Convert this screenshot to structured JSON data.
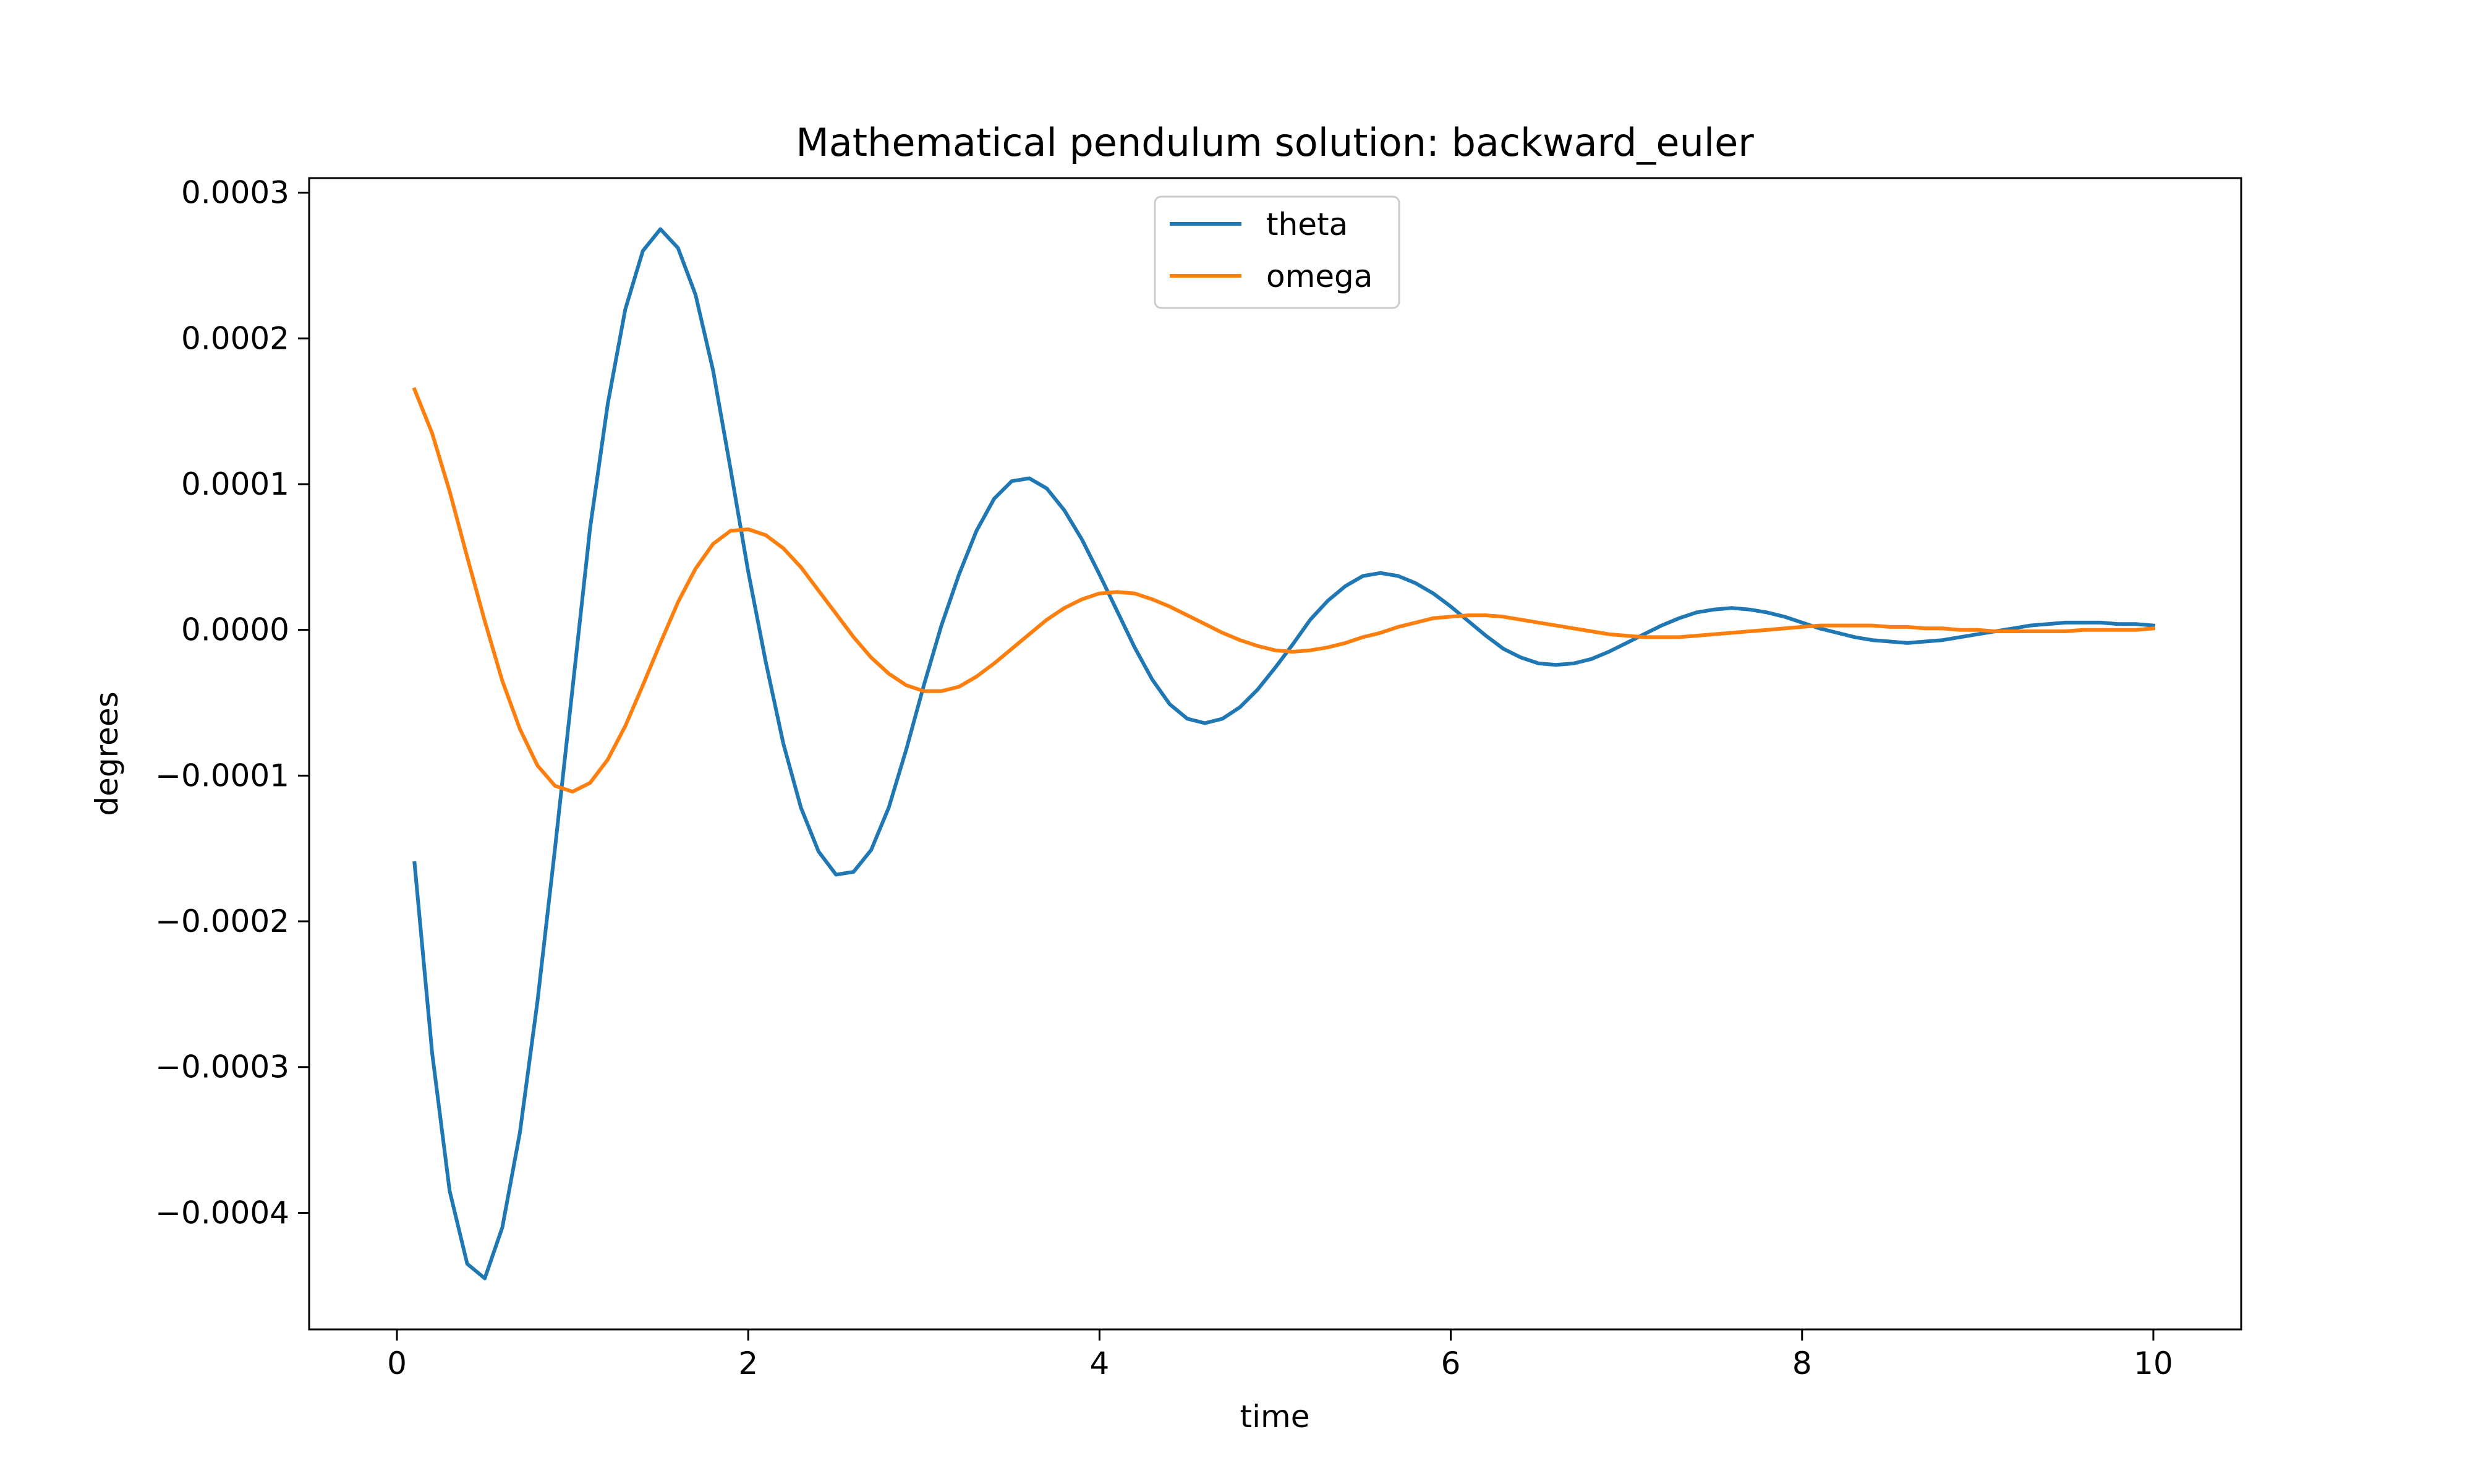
{
  "chart_data": {
    "type": "line",
    "title": "Mathematical pendulum solution: backward_euler",
    "xlabel": "time",
    "ylabel": "degrees",
    "xlim": [
      -0.5,
      10.5
    ],
    "ylim": [
      -0.00048,
      0.00031
    ],
    "grid": false,
    "legend_position": "top-center",
    "x_ticks": [
      0,
      2,
      4,
      6,
      8,
      10
    ],
    "x_tick_labels": [
      "0",
      "2",
      "4",
      "6",
      "8",
      "10"
    ],
    "y_ticks": [
      0.0003,
      0.0002,
      0.0001,
      0.0,
      -0.0001,
      -0.0002,
      -0.0003,
      -0.0004
    ],
    "y_tick_labels": [
      "0.0003",
      "0.0002",
      "0.0001",
      "0.0000",
      "−0.0001",
      "−0.0002",
      "−0.0003",
      "−0.0004"
    ],
    "x": [
      0.1,
      0.2,
      0.3,
      0.4,
      0.5,
      0.6,
      0.7,
      0.8,
      0.9,
      1.0,
      1.1,
      1.2,
      1.3,
      1.4,
      1.5,
      1.6,
      1.7,
      1.8,
      1.9,
      2.0,
      2.1,
      2.2,
      2.3,
      2.4,
      2.5,
      2.6,
      2.7,
      2.8,
      2.9,
      3.0,
      3.1,
      3.2,
      3.3,
      3.4,
      3.5,
      3.6,
      3.7,
      3.8,
      3.9,
      4.0,
      4.1,
      4.2,
      4.3,
      4.4,
      4.5,
      4.6,
      4.7,
      4.8,
      4.9,
      5.0,
      5.1,
      5.2,
      5.3,
      5.4,
      5.5,
      5.6,
      5.7,
      5.8,
      5.9,
      6.0,
      6.1,
      6.2,
      6.3,
      6.4,
      6.5,
      6.6,
      6.7,
      6.8,
      6.9,
      7.0,
      7.1,
      7.2,
      7.3,
      7.4,
      7.5,
      7.6,
      7.7,
      7.8,
      7.9,
      8.0,
      8.1,
      8.2,
      8.3,
      8.4,
      8.5,
      8.6,
      8.7,
      8.8,
      8.9,
      9.0,
      9.1,
      9.2,
      9.3,
      9.4,
      9.5,
      9.6,
      9.7,
      9.8,
      9.9,
      10.0
    ],
    "series": [
      {
        "name": "theta",
        "color": "#1f77b4",
        "values": [
          -0.00016,
          -0.00029,
          -0.000385,
          -0.000435,
          -0.000445,
          -0.00041,
          -0.000345,
          -0.000255,
          -0.00015,
          -4e-05,
          7e-05,
          0.000155,
          0.00022,
          0.00026,
          0.000275,
          0.000262,
          0.00023,
          0.000178,
          0.00011,
          4e-05,
          -2.2e-05,
          -7.8e-05,
          -0.000122,
          -0.000152,
          -0.000168,
          -0.000166,
          -0.000151,
          -0.000122,
          -8.2e-05,
          -3.8e-05,
          3e-06,
          3.8e-05,
          6.8e-05,
          9e-05,
          0.000102,
          0.000104,
          9.7e-05,
          8.2e-05,
          6.2e-05,
          3.8e-05,
          1.3e-05,
          -1.2e-05,
          -3.4e-05,
          -5.1e-05,
          -6.1e-05,
          -6.4e-05,
          -6.1e-05,
          -5.3e-05,
          -4.1e-05,
          -2.6e-05,
          -1e-05,
          7e-06,
          2e-05,
          3e-05,
          3.7e-05,
          3.9e-05,
          3.7e-05,
          3.2e-05,
          2.5e-05,
          1.6e-05,
          6e-06,
          -4e-06,
          -1.3e-05,
          -1.9e-05,
          -2.3e-05,
          -2.4e-05,
          -2.3e-05,
          -2e-05,
          -1.5e-05,
          -9e-06,
          -3e-06,
          3e-06,
          8e-06,
          1.2e-05,
          1.4e-05,
          1.5e-05,
          1.4e-05,
          1.2e-05,
          9e-06,
          5e-06,
          1e-06,
          -2e-06,
          -5e-06,
          -7e-06,
          -8e-06,
          -9e-06,
          -8e-06,
          -7e-06,
          -5e-06,
          -3e-06,
          -1e-06,
          1e-06,
          3e-06,
          4e-06,
          5e-06,
          5e-06,
          5e-06,
          4e-06,
          4e-06,
          3e-06
        ]
      },
      {
        "name": "omega",
        "color": "#ff7f0e",
        "values": [
          0.000165,
          0.000135,
          9.5e-05,
          5e-05,
          6e-06,
          -3.5e-05,
          -6.8e-05,
          -9.3e-05,
          -0.000107,
          -0.000111,
          -0.000105,
          -8.9e-05,
          -6.6e-05,
          -3.8e-05,
          -9e-06,
          1.9e-05,
          4.2e-05,
          5.9e-05,
          6.8e-05,
          6.9e-05,
          6.5e-05,
          5.6e-05,
          4.3e-05,
          2.7e-05,
          1.1e-05,
          -5e-06,
          -1.9e-05,
          -3e-05,
          -3.8e-05,
          -4.2e-05,
          -4.2e-05,
          -3.9e-05,
          -3.2e-05,
          -2.3e-05,
          -1.3e-05,
          -3e-06,
          7e-06,
          1.5e-05,
          2.1e-05,
          2.5e-05,
          2.6e-05,
          2.5e-05,
          2.1e-05,
          1.6e-05,
          1e-05,
          4e-06,
          -2e-06,
          -7e-06,
          -1.1e-05,
          -1.4e-05,
          -1.5e-05,
          -1.4e-05,
          -1.2e-05,
          -9e-06,
          -5e-06,
          -2e-06,
          2e-06,
          5e-06,
          8e-06,
          9e-06,
          1e-05,
          1e-05,
          9e-06,
          7e-06,
          5e-06,
          3e-06,
          1e-06,
          -1e-06,
          -3e-06,
          -4e-06,
          -5e-06,
          -5e-06,
          -5e-06,
          -4e-06,
          -3e-06,
          -2e-06,
          -1e-06,
          0.0,
          1e-06,
          2e-06,
          3e-06,
          3e-06,
          3e-06,
          3e-06,
          2e-06,
          2e-06,
          1e-06,
          1e-06,
          0.0,
          0.0,
          -1e-06,
          -1e-06,
          -1e-06,
          -1e-06,
          -1e-06,
          0.0,
          0.0,
          0.0,
          0.0,
          1e-06
        ]
      }
    ]
  }
}
